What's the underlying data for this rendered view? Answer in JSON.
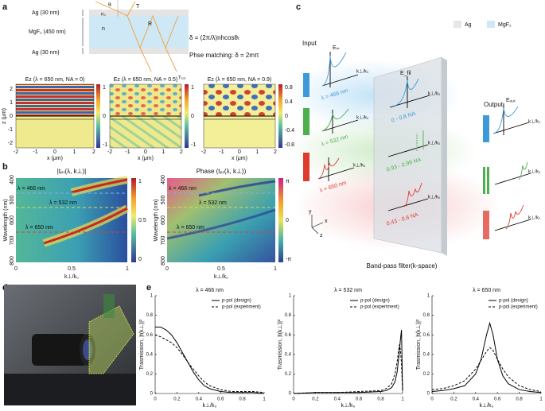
{
  "panel_labels": [
    "a",
    "b",
    "c",
    "d",
    "e"
  ],
  "panel_a": {
    "layers": [
      "Ag (30 nm)",
      "MgF₂ (450 nm)",
      "Ag (30 nm)"
    ],
    "symbols": [
      "n₀",
      "θᵢ",
      "T",
      "n",
      "R"
    ],
    "equation": "δ = (2π/λ)nhcosθₜ",
    "phase_matching": "Phse matching: δ = 2mπ",
    "field_titles": [
      "Ez (λ = 650 nm, NA = 0)",
      "Ez (λ = 650 nm, NA = 0.5)",
      "Ez (λ = 650 nm, NA = 0.9)"
    ],
    "t_tot": "Tₜₒₜ",
    "x_label": "x (μm)",
    "z_label": "z (μm)",
    "z_ticks": [
      "2",
      "1",
      "0",
      "-1",
      "-2"
    ],
    "x_ticks": [
      "-2",
      "-1",
      "0",
      "1",
      "2"
    ],
    "colorbar_ticks": [
      "1",
      "0",
      "-1"
    ],
    "colorbar_ticks_3": [
      "0.8",
      "0.4",
      "0",
      "-0.4",
      "-0.8"
    ]
  },
  "panel_b": {
    "titles": [
      "|tₚᵣ(λ, k⊥)|",
      "Phase (tₚᵣ(λ, k⊥))"
    ],
    "lines": [
      "λ = 466 nm",
      "λ = 532 nm",
      "λ = 650 nm"
    ],
    "y_label": "Wavelength (nm)",
    "y_ticks": [
      "400",
      "500",
      "600",
      "700",
      "800"
    ],
    "x_ticks": [
      "0",
      "0.5",
      "1"
    ],
    "x_label": "k⊥/k₀",
    "colorbar_1": [
      "1",
      "0.5",
      "0"
    ],
    "colorbar_2": [
      "π",
      "0",
      "-π"
    ]
  },
  "panel_c": {
    "legend": [
      "Ag",
      "MgF₂"
    ],
    "input": "Input",
    "output": "Output",
    "fields": [
      "Eᵢₙ",
      "E_fil",
      "Eₒᵤₜ"
    ],
    "k_label": "k⊥/k₀",
    "wavelengths": [
      "λ = 466 nm",
      "λ = 532 nm",
      "λ = 650 nm"
    ],
    "na_ranges": [
      "0 - 0.8 NA",
      "0.93 - 0.99 NA",
      "0.43 - 0.6 NA"
    ],
    "axes": [
      "y",
      "x",
      "z"
    ],
    "caption": "Band-pass filter(k-space)"
  },
  "chart_data": [
    {
      "type": "line",
      "title": "λ = 466 nm",
      "x_label": "k⊥/k₀",
      "y_label": "Trasmission, |t(k⊥)|²",
      "x": [
        0,
        0.05,
        0.1,
        0.15,
        0.2,
        0.25,
        0.3,
        0.35,
        0.4,
        0.45,
        0.5,
        0.6,
        0.7,
        0.8,
        0.9,
        1
      ],
      "series": [
        {
          "name": "p-pol (design)",
          "color": "#000000",
          "linestyle": "solid",
          "values": [
            0.68,
            0.68,
            0.65,
            0.6,
            0.52,
            0.42,
            0.32,
            0.22,
            0.14,
            0.08,
            0.05,
            0.02,
            0.01,
            0.01,
            0.01,
            0
          ]
        },
        {
          "name": "p-pol (experiment)",
          "color": "#000000",
          "linestyle": "dashed",
          "values": [
            0.6,
            0.58,
            0.55,
            0.52,
            0.47,
            0.4,
            0.32,
            0.25,
            0.18,
            0.12,
            0.08,
            0.04,
            0.02,
            0.02,
            0.02,
            0.01
          ]
        }
      ],
      "xlim": [
        0,
        1
      ],
      "ylim": [
        0,
        1
      ],
      "xticks": [
        0,
        0.2,
        0.4,
        0.6,
        0.8,
        1
      ],
      "yticks": [
        0,
        0.2,
        0.4,
        0.6,
        0.8,
        1
      ],
      "legend": "upper right"
    },
    {
      "type": "line",
      "title": "λ = 532 nm",
      "x_label": "k⊥/k₀",
      "y_label": "Trasmission, |t(k⊥)|²",
      "x": [
        0,
        0.2,
        0.4,
        0.6,
        0.8,
        0.85,
        0.9,
        0.93,
        0.95,
        0.97,
        0.98,
        0.99,
        1
      ],
      "series": [
        {
          "name": "p-pol (design)",
          "color": "#000000",
          "linestyle": "solid",
          "values": [
            0,
            0.01,
            0.01,
            0.01,
            0.02,
            0.03,
            0.06,
            0.12,
            0.22,
            0.42,
            0.55,
            0.65,
            0.02
          ]
        },
        {
          "name": "p-pol (experiment)",
          "color": "#000000",
          "linestyle": "dashed",
          "values": [
            0,
            0.01,
            0.01,
            0.02,
            0.03,
            0.05,
            0.1,
            0.2,
            0.32,
            0.5,
            0.45,
            0.3,
            0.02
          ]
        }
      ],
      "xlim": [
        0,
        1
      ],
      "ylim": [
        0,
        1
      ],
      "xticks": [
        0,
        0.2,
        0.4,
        0.6,
        0.8,
        1
      ],
      "yticks": [
        0,
        0.2,
        0.4,
        0.6,
        0.8,
        1
      ],
      "legend": "upper right"
    },
    {
      "type": "line",
      "title": "λ = 650 nm",
      "x_label": "k⊥/k₀",
      "y_label": "Trasmission, |t(k⊥)|²",
      "x": [
        0,
        0.1,
        0.2,
        0.3,
        0.4,
        0.45,
        0.5,
        0.53,
        0.56,
        0.6,
        0.65,
        0.7,
        0.8,
        0.9,
        1
      ],
      "series": [
        {
          "name": "p-pol (design)",
          "color": "#000000",
          "linestyle": "solid",
          "values": [
            0.02,
            0.03,
            0.05,
            0.08,
            0.2,
            0.35,
            0.6,
            0.72,
            0.6,
            0.35,
            0.18,
            0.1,
            0.04,
            0.02,
            0.01
          ]
        },
        {
          "name": "p-pol (experiment)",
          "color": "#000000",
          "linestyle": "dashed",
          "values": [
            0.04,
            0.05,
            0.08,
            0.13,
            0.25,
            0.34,
            0.43,
            0.47,
            0.44,
            0.35,
            0.25,
            0.17,
            0.08,
            0.04,
            0.02
          ]
        }
      ],
      "xlim": [
        0,
        1
      ],
      "ylim": [
        0,
        1
      ],
      "xticks": [
        0,
        0.2,
        0.4,
        0.6,
        0.8,
        1
      ],
      "yticks": [
        0,
        0.2,
        0.4,
        0.6,
        0.8,
        1
      ],
      "legend": "upper right"
    }
  ]
}
